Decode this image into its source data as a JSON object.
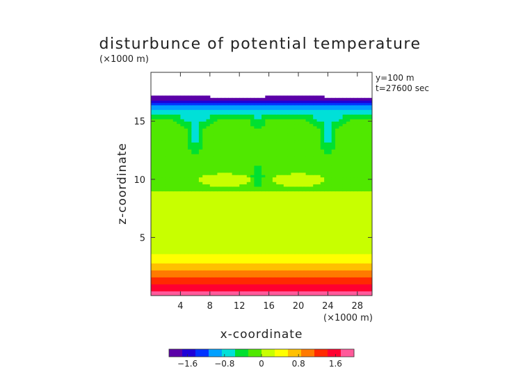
{
  "chart_data": {
    "type": "heatmap",
    "title": "disturbunce of potential temperature",
    "title_scale_note": "(×1000 m)",
    "xlabel": "x-coordinate",
    "ylabel": "z-coordinate",
    "x_scale_note": "(×1000 m)",
    "annotations": [
      "y=100 m",
      "t=27600 sec"
    ],
    "xlim": [
      0,
      30
    ],
    "ylim": [
      0,
      19.2
    ],
    "x_ticks": [
      4,
      8,
      12,
      16,
      20,
      24,
      28
    ],
    "y_ticks": [
      5,
      10,
      15
    ],
    "colorbar": {
      "range": [
        -2,
        2
      ],
      "ticks": [
        -1.6,
        -0.8,
        0,
        0.8,
        1.6
      ],
      "tick_labels": [
        "−1.6",
        "−0.8",
        "0",
        "0.8",
        "1.6"
      ]
    },
    "domain_top_z": 17.1,
    "vertical_profile": [
      {
        "z": 0.0,
        "value": 1.85
      },
      {
        "z": 0.6,
        "value": 1.6
      },
      {
        "z": 1.2,
        "value": 1.3
      },
      {
        "z": 1.8,
        "value": 1.0
      },
      {
        "z": 2.4,
        "value": 0.75
      },
      {
        "z": 3.0,
        "value": 0.5
      },
      {
        "z": 3.6,
        "value": 0.3
      },
      {
        "z": 4.5,
        "value": 0.15
      },
      {
        "z": 6.0,
        "value": 0.05
      },
      {
        "z": 9.0,
        "value": 0.0
      },
      {
        "z": 13.0,
        "value": -0.05
      },
      {
        "z": 14.8,
        "value": -0.15
      },
      {
        "z": 15.6,
        "value": -0.5
      },
      {
        "z": 16.2,
        "value": -1.0
      },
      {
        "z": 16.7,
        "value": -1.5
      },
      {
        "z": 17.1,
        "value": -1.95
      }
    ],
    "anomalies": [
      {
        "x": 6.0,
        "z": 13.4,
        "radius_x": 1.5,
        "radius_z": 1.6,
        "value": -0.55
      },
      {
        "x": 6.0,
        "z": 15.0,
        "radius_x": 2.8,
        "radius_z": 1.0,
        "value": -0.4
      },
      {
        "x": 24.0,
        "z": 13.4,
        "radius_x": 1.5,
        "radius_z": 1.6,
        "value": -0.55
      },
      {
        "x": 24.0,
        "z": 15.0,
        "radius_x": 2.8,
        "radius_z": 1.0,
        "value": -0.4
      },
      {
        "x": 14.5,
        "z": 10.3,
        "radius_x": 1.2,
        "radius_z": 1.4,
        "value": -0.45
      },
      {
        "x": 14.5,
        "z": 15.0,
        "radius_x": 1.2,
        "radius_z": 0.9,
        "value": -0.3
      },
      {
        "x": 15.0,
        "z": 7.0,
        "radius_x": 1.5,
        "radius_z": 1.1,
        "value": 0.12
      },
      {
        "x": 10.0,
        "z": 10.0,
        "radius_x": 4.0,
        "radius_z": 0.6,
        "value": 0.08
      },
      {
        "x": 20.0,
        "z": 10.0,
        "radius_x": 4.0,
        "radius_z": 0.6,
        "value": 0.08
      }
    ]
  },
  "colors": {
    "palette": [
      "#5b00a8",
      "#1e00d8",
      "#0033ff",
      "#00a0ff",
      "#00e0d8",
      "#00e030",
      "#50e800",
      "#c8ff00",
      "#ffff00",
      "#ffc000",
      "#ff7a00",
      "#ff2a00",
      "#ff0030",
      "#ff5a9a"
    ]
  }
}
